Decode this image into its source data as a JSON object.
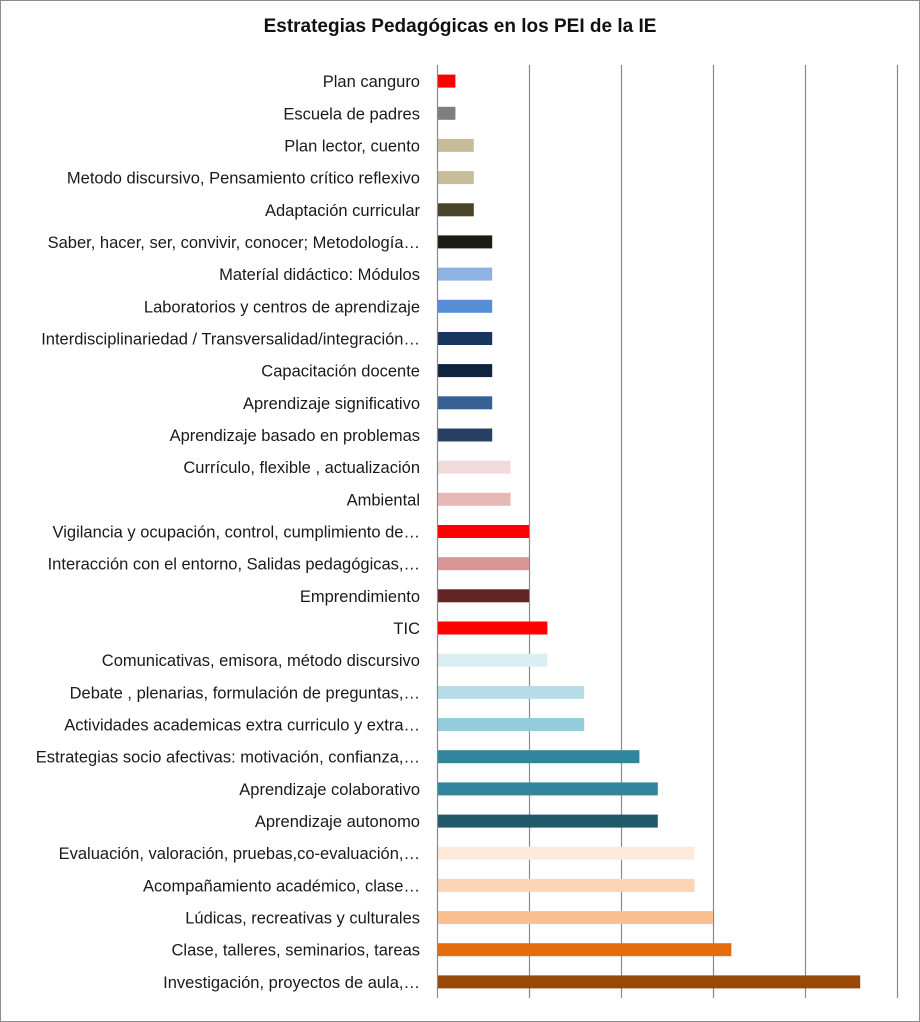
{
  "chart_data": {
    "type": "bar",
    "orientation": "horizontal",
    "title": "Estrategias Pedagógicas en los PEI de la IE",
    "xlabel": "",
    "ylabel": "",
    "xlim": [
      0,
      25
    ],
    "grid": true,
    "legend": "none",
    "tick_labels_visible": false,
    "categories": [
      "Plan canguro",
      "Escuela de padres",
      "Plan lector, cuento",
      "Metodo discursivo, Pensamiento crítico reflexivo",
      "Adaptación curricular",
      "Saber, hacer, ser, convivir, conocer; Metodología…",
      "Materíal didáctico: Módulos",
      "Laboratorios y centros de aprendizaje",
      "Interdisciplinariedad / Transversalidad/integración…",
      "Capacitación docente",
      "Aprendizaje significativo",
      "Aprendizaje basado en problemas",
      "Currículo, flexible , actualización",
      "Ambiental",
      "Vigilancia y ocupación, control,  cumplimiento de…",
      "Interacción con el entorno, Salidas pedagógicas,…",
      "Emprendimiento",
      "TIC",
      "Comunicativas, emisora, método discursivo",
      "Debate , plenarias, formulación de preguntas,…",
      "Actividades academicas extra curriculo y extra…",
      "Estrategias socio afectivas: motivación, confianza,…",
      "Aprendizaje colaborativo",
      "Aprendizaje autonomo",
      "Evaluación, valoración, pruebas,co-evaluación,…",
      "Acompañamiento académico, clase…",
      "Lúdicas, recreativas y culturales",
      "Clase, talleres, seminarios, tareas",
      "Investigación, proyectos de aula,…"
    ],
    "values": [
      1,
      1,
      2,
      2,
      2,
      3,
      3,
      3,
      3,
      3,
      3,
      3,
      4,
      4,
      5,
      5,
      5,
      6,
      6,
      8,
      8,
      11,
      12,
      12,
      14,
      14,
      15,
      16,
      23
    ],
    "colors": [
      "#ff0000",
      "#7f7f7f",
      "#c4bd97",
      "#c4bd97",
      "#494429",
      "#1c1c12",
      "#8db3e2",
      "#558ed5",
      "#17375e",
      "#10243f",
      "#366092",
      "#254061",
      "#f2dcdb",
      "#e6b9b8",
      "#ff0000",
      "#d99694",
      "#632523",
      "#ff0000",
      "#dbeef4",
      "#b7dee8",
      "#93cddd",
      "#31859c",
      "#31859c",
      "#215968",
      "#fdeada",
      "#fcd5b5",
      "#fac090",
      "#e46c0a",
      "#984807"
    ]
  }
}
